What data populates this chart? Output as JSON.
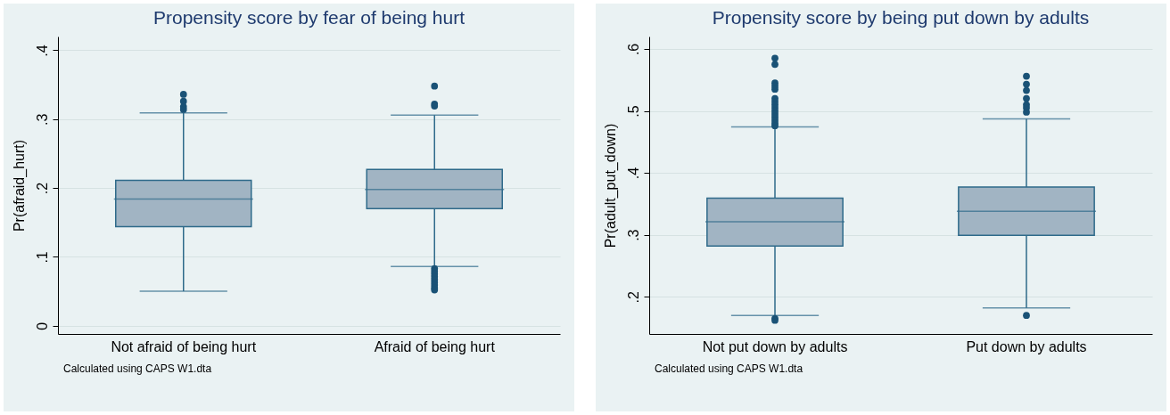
{
  "chart_data": [
    {
      "type": "box",
      "title": "Propensity score by fear of being hurt",
      "ylabel": "Pr(afraid_hurt)",
      "categories": [
        "Not afraid of being hurt",
        "Afraid of being hurt"
      ],
      "ylim": [
        -0.012,
        0.42
      ],
      "yticks": [
        0,
        {
          "value": 0.1,
          "label": ".1"
        },
        {
          "value": 0.2,
          "label": ".2"
        },
        {
          "value": 0.3,
          "label": ".3"
        },
        {
          "value": 0.4,
          "label": ".4"
        }
      ],
      "grid": "y",
      "annotations": [
        "Calculated using CAPS W1.dta"
      ],
      "series": [
        {
          "color": "#a1b4c3",
          "boxes": [
            {
              "low": 0.05,
              "q1": 0.144,
              "median": 0.184,
              "q3": 0.211,
              "high": 0.309,
              "outliers": [
                0.336,
                0.326,
                0.318,
                0.314
              ]
            },
            {
              "low": 0.086,
              "q1": 0.17,
              "median": 0.198,
              "q3": 0.227,
              "high": 0.306,
              "outliers": [
                0.348,
                0.322,
                0.319,
                0.083,
                0.079,
                0.075,
                0.071,
                0.067,
                0.063,
                0.059,
                0.055,
                0.052
              ]
            }
          ]
        }
      ]
    },
    {
      "type": "box",
      "title": "Propensity score by being put down by adults",
      "ylabel": "Pr(adult_put_down)",
      "categories": [
        "Not put down by adults",
        "Put down by adults"
      ],
      "ylim": [
        0.14,
        0.62
      ],
      "yticks": [
        {
          "value": 0.2,
          "label": ".2"
        },
        {
          "value": 0.3,
          "label": ".3"
        },
        {
          "value": 0.4,
          "label": ".4"
        },
        {
          "value": 0.5,
          "label": ".5"
        },
        {
          "value": 0.6,
          "label": ".6"
        }
      ],
      "grid": "y",
      "annotations": [
        "Calculated using CAPS W1.dta"
      ],
      "series": [
        {
          "color": "#a1b4c3",
          "boxes": [
            {
              "low": 0.17,
              "q1": 0.282,
              "median": 0.321,
              "q3": 0.359,
              "high": 0.474,
              "outliers": [
                0.585,
                0.575,
                0.545,
                0.54,
                0.535,
                0.52,
                0.515,
                0.51,
                0.505,
                0.5,
                0.495,
                0.49,
                0.485,
                0.48,
                0.476,
                0.165,
                0.162
              ]
            },
            {
              "low": 0.182,
              "q1": 0.299,
              "median": 0.338,
              "q3": 0.377,
              "high": 0.487,
              "outliers": [
                0.556,
                0.543,
                0.533,
                0.52,
                0.51,
                0.505,
                0.498,
                0.17
              ]
            }
          ]
        }
      ]
    }
  ]
}
